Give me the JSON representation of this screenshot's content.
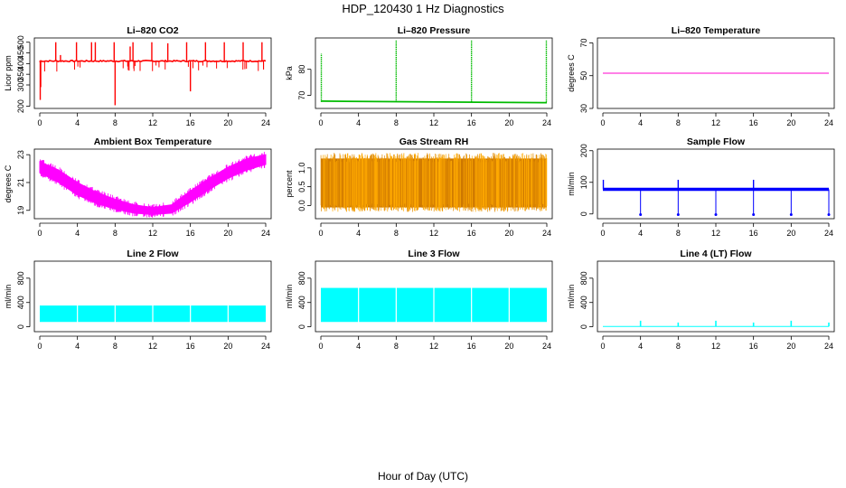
{
  "figure": {
    "title": "HDP_120430  1 Hz Diagnostics",
    "xlabel": "Hour of Day (UTC)"
  },
  "chart_data": [
    {
      "type": "line",
      "title": "Li–820 CO2",
      "ylabel": "Licor ppm",
      "color": "#ff0000",
      "xlim": [
        0,
        24
      ],
      "ylim": [
        190,
        520
      ],
      "x_ticks": [
        0,
        4,
        8,
        12,
        16,
        20,
        24
      ],
      "y_ticks": [
        200,
        300,
        350,
        400,
        450,
        500
      ],
      "y_tick_labels": [
        "200",
        "300",
        "350",
        "400",
        "450",
        "500"
      ],
      "baseline": 412,
      "spikes": [
        {
          "x": 0.05,
          "y": 230
        },
        {
          "x": 0.1,
          "y": 290
        },
        {
          "x": 1.7,
          "y": 500
        },
        {
          "x": 2.2,
          "y": 440
        },
        {
          "x": 3.9,
          "y": 500
        },
        {
          "x": 5.5,
          "y": 500
        },
        {
          "x": 5.9,
          "y": 500
        },
        {
          "x": 7.9,
          "y": 500
        },
        {
          "x": 8.0,
          "y": 205
        },
        {
          "x": 9.6,
          "y": 480
        },
        {
          "x": 9.9,
          "y": 500
        },
        {
          "x": 11.9,
          "y": 500
        },
        {
          "x": 13.6,
          "y": 495
        },
        {
          "x": 15.6,
          "y": 500
        },
        {
          "x": 16.0,
          "y": 270
        },
        {
          "x": 17.6,
          "y": 500
        },
        {
          "x": 19.6,
          "y": 500
        },
        {
          "x": 21.6,
          "y": 500
        },
        {
          "x": 23.6,
          "y": 500
        }
      ]
    },
    {
      "type": "line",
      "title": "Li–820 Pressure",
      "ylabel": "kPa",
      "color": "#00bb00",
      "xlim": [
        0,
        24
      ],
      "ylim": [
        65,
        92
      ],
      "x_ticks": [
        0,
        4,
        8,
        12,
        16,
        20,
        24
      ],
      "y_ticks": [
        70,
        80
      ],
      "y_tick_labels": [
        "70",
        "80"
      ],
      "baseline": 67.5,
      "spikes": [
        {
          "x": 0.05,
          "y": 86
        },
        {
          "x": 8.0,
          "y": 91
        },
        {
          "x": 16.0,
          "y": 91
        },
        {
          "x": 23.95,
          "y": 91
        }
      ]
    },
    {
      "type": "line",
      "title": "Li–820 Temperature",
      "ylabel": "degrees C",
      "color": "#ff00cc",
      "xlim": [
        0,
        24
      ],
      "ylim": [
        30,
        73
      ],
      "x_ticks": [
        0,
        4,
        8,
        12,
        16,
        20,
        24
      ],
      "y_ticks": [
        30,
        50,
        70
      ],
      "y_tick_labels": [
        "30",
        "50",
        "70"
      ],
      "baseline": 51.5
    },
    {
      "type": "area",
      "title": "Ambient Box Temperature",
      "ylabel": "degrees C",
      "color": "#ff00ff",
      "xlim": [
        0,
        24
      ],
      "ylim": [
        18.4,
        23.4
      ],
      "x_ticks": [
        0,
        4,
        8,
        12,
        16,
        20,
        24
      ],
      "y_ticks": [
        19,
        21,
        23
      ],
      "y_tick_labels": [
        "19",
        "21",
        "23"
      ],
      "x": [
        0,
        2,
        4,
        6,
        8,
        10,
        12,
        14,
        16,
        18,
        20,
        22,
        24
      ],
      "lower": [
        21.7,
        21.0,
        20.1,
        19.5,
        19.1,
        18.8,
        18.7,
        18.8,
        19.6,
        20.5,
        21.3,
        21.9,
        22.3
      ],
      "upper": [
        22.5,
        21.9,
        21.0,
        20.3,
        19.8,
        19.4,
        19.2,
        19.4,
        20.4,
        21.3,
        22.1,
        22.7,
        23.0
      ]
    },
    {
      "type": "area",
      "title": "Gas Stream RH",
      "ylabel": "percent",
      "color": "#ff8800",
      "xlim": [
        0,
        24
      ],
      "ylim": [
        -0.35,
        1.5
      ],
      "x_ticks": [
        0,
        4,
        8,
        12,
        16,
        20,
        24
      ],
      "y_ticks": [
        0.0,
        0.5,
        1.0
      ],
      "y_tick_labels": [
        "0.0",
        "0.5",
        "1.0"
      ],
      "lower": -0.05,
      "upper": 1.25
    },
    {
      "type": "line",
      "title": "Sample Flow",
      "ylabel": "ml/min",
      "color": "#0000ff",
      "xlim": [
        0,
        24
      ],
      "ylim": [
        -15,
        205
      ],
      "x_ticks": [
        0,
        4,
        8,
        12,
        16,
        20,
        24
      ],
      "y_ticks": [
        0,
        100,
        200
      ],
      "y_tick_labels": [
        "0",
        "100",
        "200"
      ],
      "baseline": 78,
      "dips": [
        4,
        8,
        12,
        16,
        20,
        24
      ],
      "spikes": [
        {
          "x": 0.05,
          "y": 108
        },
        {
          "x": 8.0,
          "y": 108
        },
        {
          "x": 16.0,
          "y": 108
        }
      ]
    },
    {
      "type": "area",
      "title": "Line 2 Flow",
      "ylabel": "ml/min",
      "color": "#00ffff",
      "xlim": [
        0,
        24
      ],
      "ylim": [
        -80,
        1080
      ],
      "x_ticks": [
        0,
        4,
        8,
        12,
        16,
        20,
        24
      ],
      "y_ticks": [
        0,
        400,
        800
      ],
      "y_tick_labels": [
        "0",
        "400",
        "800"
      ],
      "lower": 80,
      "upper": 350,
      "gaps": [
        4,
        8,
        12,
        16,
        20
      ]
    },
    {
      "type": "area",
      "title": "Line 3 Flow",
      "ylabel": "ml/min",
      "color": "#00ffff",
      "xlim": [
        0,
        24
      ],
      "ylim": [
        -80,
        1080
      ],
      "x_ticks": [
        0,
        4,
        8,
        12,
        16,
        20,
        24
      ],
      "y_ticks": [
        0,
        400,
        800
      ],
      "y_tick_labels": [
        "0",
        "400",
        "800"
      ],
      "lower": 80,
      "upper": 640,
      "gaps": [
        4,
        8,
        12,
        16,
        20
      ]
    },
    {
      "type": "line",
      "title": "Line 4 (LT) Flow",
      "ylabel": "ml/min",
      "color": "#00ffff",
      "xlim": [
        0,
        24
      ],
      "ylim": [
        -80,
        1080
      ],
      "x_ticks": [
        0,
        4,
        8,
        12,
        16,
        20,
        24
      ],
      "y_ticks": [
        0,
        400,
        800
      ],
      "y_tick_labels": [
        "0",
        "400",
        "800"
      ],
      "baseline": 5,
      "spikes": [
        {
          "x": 4,
          "y": 100
        },
        {
          "x": 8,
          "y": 70
        },
        {
          "x": 12,
          "y": 100
        },
        {
          "x": 16,
          "y": 70
        },
        {
          "x": 20,
          "y": 100
        },
        {
          "x": 24,
          "y": 70
        }
      ]
    }
  ]
}
